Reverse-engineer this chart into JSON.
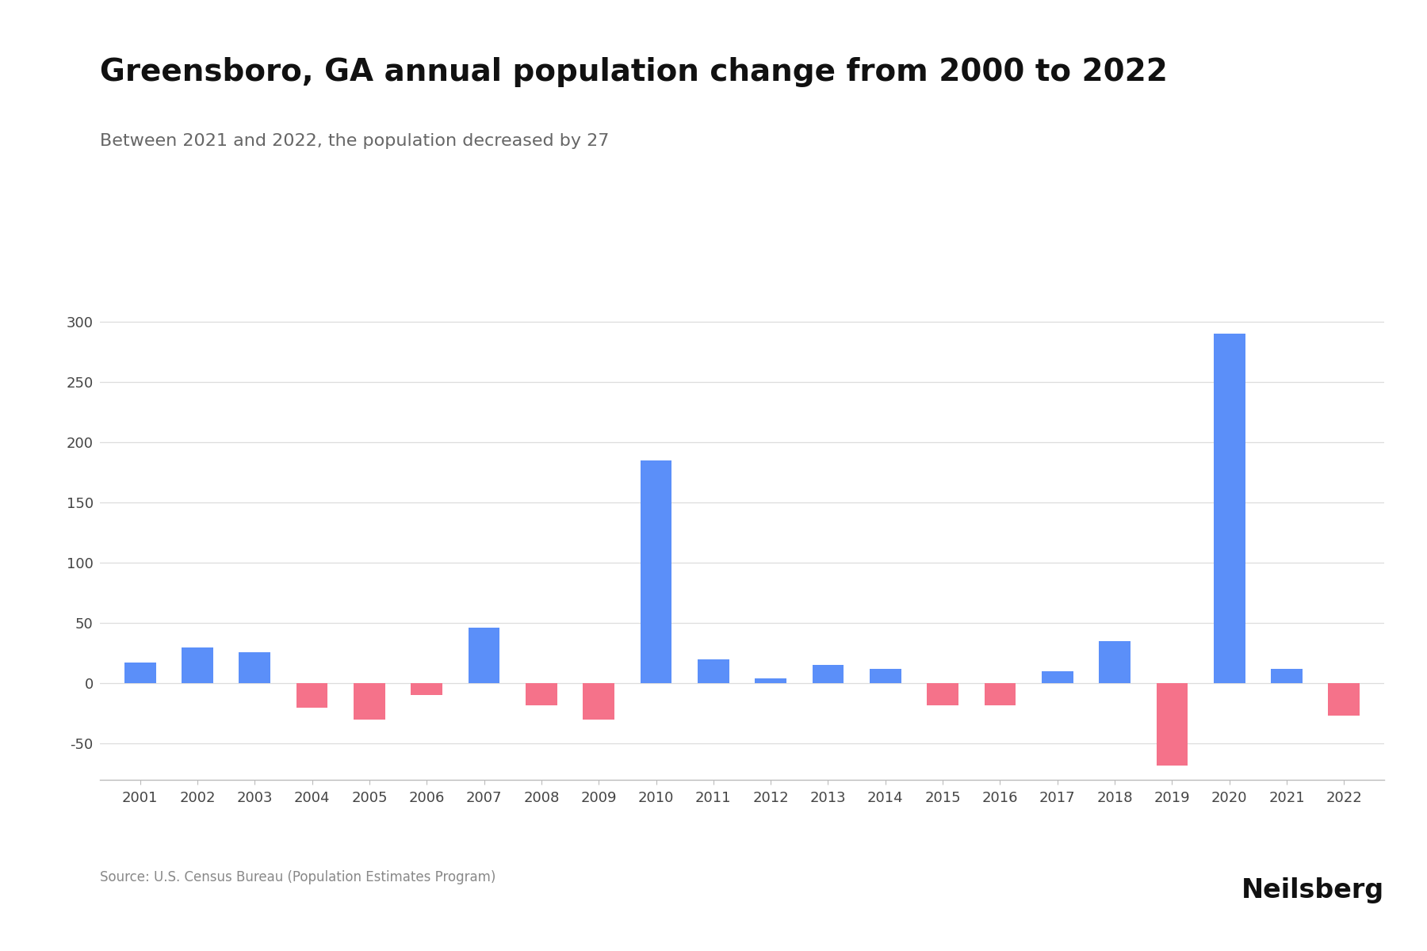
{
  "title": "Greensboro, GA annual population change from 2000 to 2022",
  "subtitle": "Between 2021 and 2022, the population decreased by 27",
  "source": "Source: U.S. Census Bureau (Population Estimates Program)",
  "years": [
    2001,
    2002,
    2003,
    2004,
    2005,
    2006,
    2007,
    2008,
    2009,
    2010,
    2011,
    2012,
    2013,
    2014,
    2015,
    2016,
    2017,
    2018,
    2019,
    2020,
    2021,
    2022
  ],
  "values": [
    17,
    30,
    26,
    -20,
    -30,
    -10,
    46,
    -18,
    -30,
    185,
    20,
    4,
    15,
    12,
    -18,
    -18,
    10,
    35,
    -68,
    290,
    12,
    -27
  ],
  "positive_color": "#5B8FF9",
  "negative_color": "#F5728A",
  "background_color": "#FFFFFF",
  "ylim": [
    -80,
    330
  ],
  "yticks": [
    -50,
    0,
    50,
    100,
    150,
    200,
    250,
    300
  ],
  "title_fontsize": 28,
  "subtitle_fontsize": 16,
  "tick_fontsize": 13,
  "source_fontsize": 12,
  "neilsberg_fontsize": 24,
  "figsize": [
    18,
    12
  ],
  "bar_width": 0.55
}
